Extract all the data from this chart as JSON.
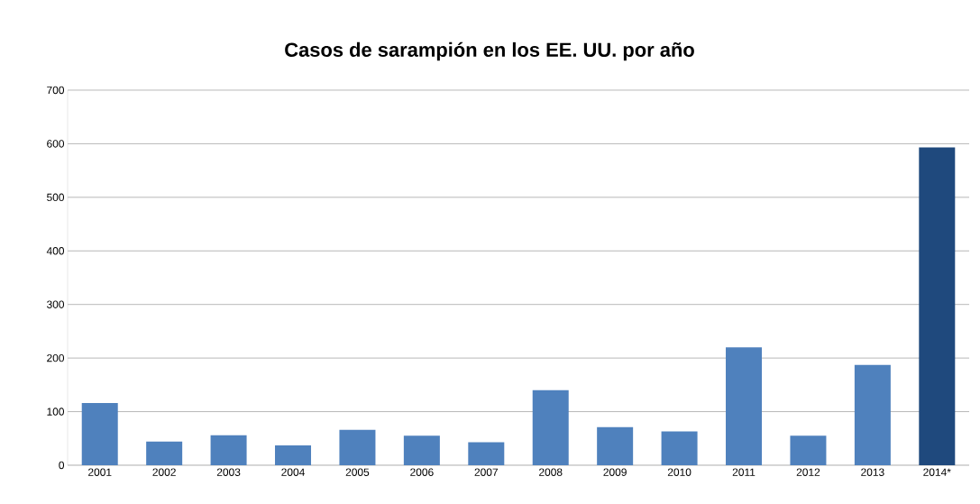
{
  "chart_data": {
    "type": "bar",
    "title": "Casos de sarampión en los EE. UU. por año",
    "categories": [
      "2001",
      "2002",
      "2003",
      "2004",
      "2005",
      "2006",
      "2007",
      "2008",
      "2009",
      "2010",
      "2011",
      "2012",
      "2013",
      "2014*"
    ],
    "values": [
      116,
      44,
      56,
      37,
      66,
      55,
      43,
      140,
      71,
      63,
      220,
      55,
      187,
      593
    ],
    "colors": [
      "#4f81bd",
      "#4f81bd",
      "#4f81bd",
      "#4f81bd",
      "#4f81bd",
      "#4f81bd",
      "#4f81bd",
      "#4f81bd",
      "#4f81bd",
      "#4f81bd",
      "#4f81bd",
      "#4f81bd",
      "#4f81bd",
      "#1f497d"
    ],
    "ylim": [
      0,
      700
    ],
    "yticks": [
      0,
      100,
      200,
      300,
      400,
      500,
      600,
      700
    ],
    "grid": "y"
  }
}
